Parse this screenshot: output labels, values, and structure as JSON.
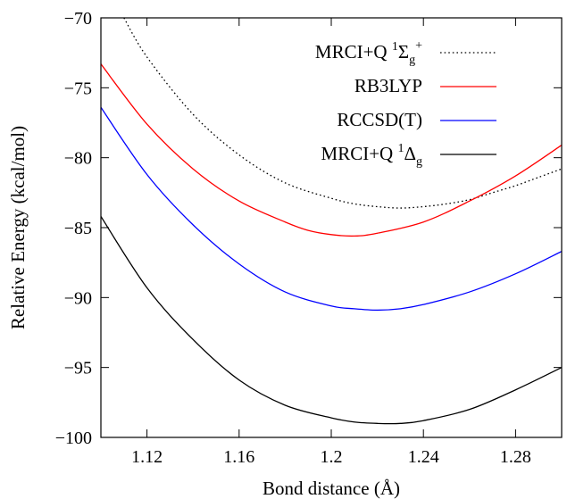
{
  "chart_data": {
    "type": "line",
    "title": "",
    "xlabel": "Bond distance (Å)",
    "ylabel": "Relative Energy (kcal/mol)",
    "xlim": [
      1.1,
      1.3
    ],
    "ylim": [
      -100,
      -70
    ],
    "xticks": [
      {
        "value": 1.12,
        "label": "1.12"
      },
      {
        "value": 1.16,
        "label": "1.16"
      },
      {
        "value": 1.2,
        "label": "1.2"
      },
      {
        "value": 1.24,
        "label": "1.24"
      },
      {
        "value": 1.28,
        "label": "1.28"
      }
    ],
    "yticks": [
      {
        "value": -70,
        "label": "−70"
      },
      {
        "value": -75,
        "label": "−75"
      },
      {
        "value": -80,
        "label": "−80"
      },
      {
        "value": -85,
        "label": "−85"
      },
      {
        "value": -90,
        "label": "−90"
      },
      {
        "value": -95,
        "label": "−95"
      },
      {
        "value": -100,
        "label": "−100"
      }
    ],
    "grid": false,
    "legend_position": "top-right",
    "series": [
      {
        "name_main": "MRCI+Q ",
        "name_sup": "1",
        "name_symbol": "Σ",
        "name_sub": "g",
        "name_sup2": "+",
        "color": "#000000",
        "dash": "dotted",
        "x": [
          1.11,
          1.12,
          1.14,
          1.16,
          1.18,
          1.2,
          1.21,
          1.22,
          1.23,
          1.24,
          1.25,
          1.26,
          1.27,
          1.28,
          1.29,
          1.3
        ],
        "y": [
          -70.0,
          -72.8,
          -76.9,
          -79.8,
          -81.8,
          -82.9,
          -83.3,
          -83.5,
          -83.6,
          -83.5,
          -83.3,
          -83.0,
          -82.5,
          -82.0,
          -81.4,
          -80.8
        ]
      },
      {
        "name_main": "RB3LYP",
        "color": "#ff0000",
        "dash": "solid",
        "x": [
          1.1,
          1.12,
          1.14,
          1.16,
          1.18,
          1.19,
          1.2,
          1.21,
          1.22,
          1.24,
          1.26,
          1.28,
          1.3
        ],
        "y": [
          -73.3,
          -77.6,
          -80.8,
          -83.1,
          -84.6,
          -85.2,
          -85.5,
          -85.6,
          -85.4,
          -84.6,
          -83.1,
          -81.3,
          -79.1
        ]
      },
      {
        "name_main": "RCCSD(T)",
        "color": "#0000ff",
        "dash": "solid",
        "x": [
          1.1,
          1.12,
          1.14,
          1.16,
          1.18,
          1.2,
          1.21,
          1.22,
          1.23,
          1.24,
          1.26,
          1.28,
          1.3
        ],
        "y": [
          -76.4,
          -81.2,
          -84.8,
          -87.6,
          -89.6,
          -90.6,
          -90.8,
          -90.9,
          -90.8,
          -90.5,
          -89.6,
          -88.3,
          -86.7
        ]
      },
      {
        "name_main": "MRCI+Q ",
        "name_sup": "1",
        "name_symbol": "Δ",
        "name_sub": "g",
        "name_sup2": "",
        "color": "#000000",
        "dash": "solid",
        "x": [
          1.1,
          1.12,
          1.14,
          1.16,
          1.18,
          1.2,
          1.21,
          1.22,
          1.23,
          1.24,
          1.26,
          1.28,
          1.3
        ],
        "y": [
          -84.2,
          -89.3,
          -93.0,
          -95.9,
          -97.7,
          -98.6,
          -98.9,
          -99.0,
          -99.0,
          -98.8,
          -98.0,
          -96.6,
          -95.0
        ]
      }
    ]
  }
}
